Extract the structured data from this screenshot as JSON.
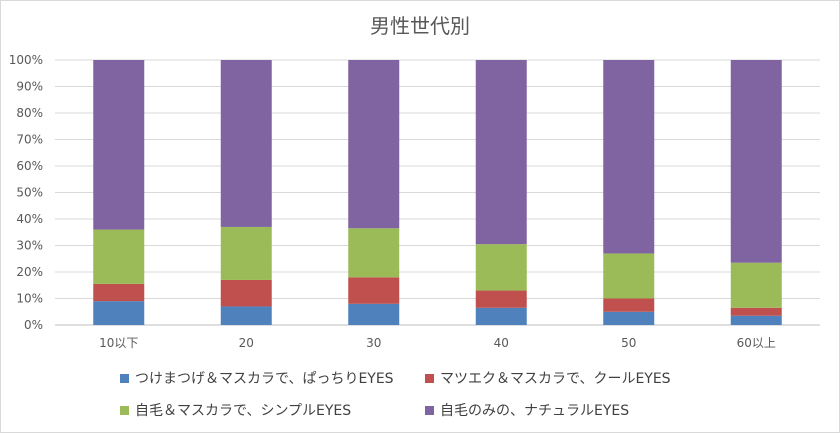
{
  "chart_data": {
    "type": "bar",
    "stacked": "percent",
    "title": "男性世代別",
    "categories": [
      "10以下",
      "20",
      "30",
      "40",
      "50",
      "60以上"
    ],
    "ylim": [
      0,
      100
    ],
    "y_ticks": [
      "0%",
      "10%",
      "20%",
      "30%",
      "40%",
      "50%",
      "60%",
      "70%",
      "80%",
      "90%",
      "100%"
    ],
    "grid": true,
    "legend_position": "bottom",
    "series": [
      {
        "name": "つけまつげ＆マスカラで、ぱっちりEYES",
        "color": "#4f81bd",
        "values": [
          9,
          7,
          8,
          6.5,
          5,
          3.5
        ]
      },
      {
        "name": "マツエク＆マスカラで、クールEYES",
        "color": "#c0504d",
        "values": [
          6.5,
          10,
          10,
          6.5,
          5,
          3
        ]
      },
      {
        "name": "自毛＆マスカラで、シンプルEYES",
        "color": "#9bbb59",
        "values": [
          20.5,
          20,
          18.5,
          17.5,
          17,
          17
        ]
      },
      {
        "name": "自毛のみの、ナチュラルEYES",
        "color": "#8064a2",
        "values": [
          64,
          63,
          63.5,
          69.5,
          73,
          76.5
        ]
      }
    ]
  }
}
